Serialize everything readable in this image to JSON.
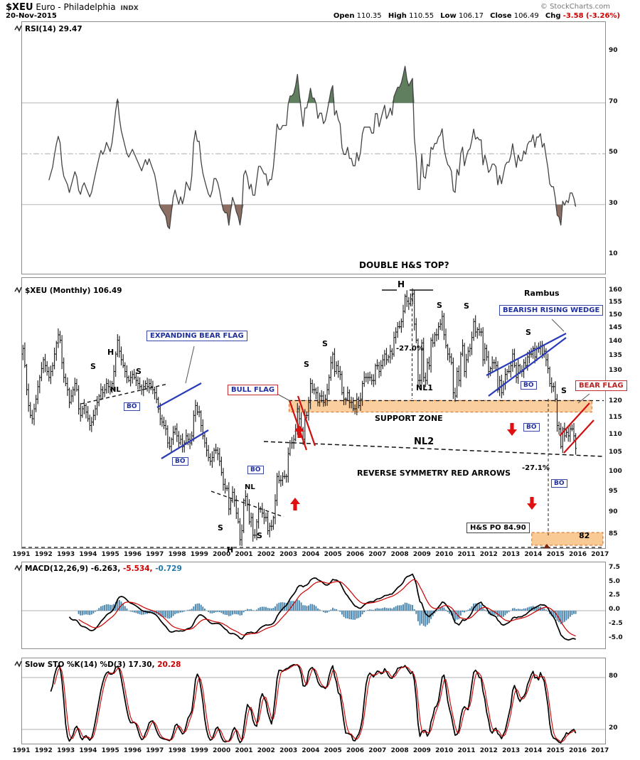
{
  "header": {
    "symbol": "$XEU",
    "name": "Euro - Philadelphia",
    "exchange": "INDX",
    "date": "20-Nov-2015",
    "copyright": "© StockCharts.com",
    "quote": {
      "open_label": "Open",
      "open": "110.35",
      "high_label": "High",
      "high": "110.55",
      "low_label": "Low",
      "low": "106.17",
      "close_label": "Close",
      "close": "106.49",
      "chg_label": "Chg",
      "chg": "-3.58 (-3.26%)"
    }
  },
  "panels": {
    "rsi": {
      "label": "RSI(14)",
      "value": "29.47"
    },
    "price": {
      "label": "$XEU (Monthly)",
      "value": "106.49"
    },
    "macd": {
      "label": "MACD(12,26,9)",
      "v1": "-6.263,",
      "v2": "-5.534,",
      "v3": "-0.729"
    },
    "sto": {
      "label": "Slow STO %K(14) %D(3)",
      "v1": "17.30,",
      "v2": "20.28"
    }
  },
  "chart_data": {
    "type": "multi-panel-financial",
    "symbol": "$XEU",
    "timeframe": "monthly",
    "x_axis": {
      "start_year": 1991,
      "year_ticks": [
        1991,
        1992,
        1993,
        1994,
        1995,
        1996,
        1997,
        1998,
        1999,
        2000,
        2001,
        2002,
        2003,
        2004,
        2005,
        2006,
        2007,
        2008,
        2009,
        2010,
        2011,
        2012,
        2013,
        2014,
        2015,
        2016,
        2017
      ]
    },
    "price_panel": {
      "kind": "ohlc-bars",
      "log_scale": true,
      "y_ticks": [
        160,
        155,
        150,
        145,
        140,
        135,
        130,
        125,
        120,
        115,
        110,
        105,
        100,
        95,
        90,
        85
      ],
      "support_zone": {
        "top": 120.6,
        "bottom": 117.0,
        "from_year": 2003.0,
        "to_year": 2016.6
      },
      "target_zone": {
        "top": 85.6,
        "bottom": 82.8,
        "from_year": 2013.9,
        "to_year": 2017.1
      },
      "hs_price_objective": 84.9,
      "monthly_close": [
        138,
        132,
        124,
        119,
        116,
        115,
        118,
        121,
        125,
        128,
        131,
        134,
        132,
        130,
        128,
        130,
        132,
        136,
        140,
        143,
        141,
        133,
        128,
        126,
        124,
        120,
        122,
        124,
        126,
        124,
        118,
        116,
        118,
        119,
        117,
        115,
        113,
        114,
        116,
        118,
        120,
        122,
        124,
        123,
        124,
        126,
        125,
        124,
        126,
        130,
        136,
        141,
        137,
        134,
        132,
        130,
        128,
        127,
        128,
        129,
        128,
        127,
        126,
        125,
        124,
        125,
        126,
        125,
        126,
        125,
        124,
        123,
        121,
        118,
        115,
        114,
        113,
        112,
        108,
        107,
        109,
        111,
        112,
        110,
        108,
        109,
        107,
        108,
        110,
        109,
        108,
        110,
        116,
        119,
        117,
        117,
        113,
        110,
        108,
        106,
        104,
        103,
        104,
        106,
        106,
        105,
        103,
        100,
        97,
        96,
        96,
        91,
        93,
        95,
        93,
        90,
        88,
        84,
        86,
        93,
        94,
        92,
        88,
        89,
        85,
        85,
        88,
        91,
        91,
        90,
        89,
        89,
        86,
        87,
        87,
        89,
        93,
        99,
        98,
        98,
        99,
        99,
        99,
        105,
        108,
        108,
        109,
        112,
        118,
        115,
        112,
        109,
        116,
        116,
        120,
        126,
        124,
        124,
        123,
        120,
        122,
        122,
        120,
        121,
        124,
        128,
        133,
        136,
        130,
        132,
        130,
        129,
        123,
        121,
        121,
        123,
        120,
        120,
        118,
        118,
        121,
        119,
        121,
        126,
        128,
        128,
        128,
        128,
        127,
        127,
        132,
        132,
        130,
        132,
        134,
        136,
        134,
        135,
        137,
        136,
        142,
        144,
        146,
        146,
        148,
        152,
        158,
        156,
        155,
        157,
        159,
        147,
        141,
        127,
        127,
        140,
        128,
        127,
        133,
        132,
        141,
        140,
        143,
        143,
        146,
        147,
        150,
        143,
        139,
        136,
        135,
        133,
        123,
        122,
        130,
        127,
        136,
        139,
        130,
        134,
        137,
        138,
        142,
        148,
        144,
        145,
        144,
        144,
        134,
        138,
        135,
        130,
        131,
        133,
        133,
        132,
        124,
        127,
        123,
        126,
        129,
        130,
        130,
        132,
        136,
        132,
        128,
        132,
        130,
        130,
        133,
        132,
        135,
        136,
        136,
        138,
        135,
        138,
        138,
        139,
        136,
        137,
        134,
        131,
        126,
        125,
        125,
        121,
        113,
        112,
        107,
        112,
        110,
        111,
        110,
        112,
        112,
        110,
        106.49
      ]
    },
    "rsi_panel": {
      "kind": "line",
      "period": 14,
      "y_ticks": [
        90,
        70,
        50,
        30,
        10
      ],
      "overbought": 70,
      "oversold": 30,
      "current": 29.47
    },
    "macd_panel": {
      "kind": "macd",
      "params": [
        12,
        26,
        9
      ],
      "y_ticks": [
        7.5,
        5.0,
        2.5,
        0.0,
        -2.5,
        -5.0
      ],
      "current": [
        -6.263,
        -5.534,
        -0.729
      ]
    },
    "sto_panel": {
      "kind": "stochastic",
      "params": "%K(14) %D(3)",
      "y_ticks": [
        80,
        20
      ],
      "current": [
        17.3,
        20.28
      ]
    },
    "colors": {
      "bar": "#1a1a1a",
      "rsi_line": "#444444",
      "rsi_fill_high": "#5f7f5f",
      "rsi_fill_low": "#8d6e63",
      "macd_line": "#000000",
      "signal_line": "#cc0000",
      "histogram": "#4a86ad",
      "sto_k": "#000000",
      "sto_d": "#cc0000",
      "zone_fill": "#f5a64d",
      "zone_border": "#d2691e",
      "annotation_blue": "#2a3bb8",
      "annotation_red": "#d01010",
      "arrow_red": "#e01010",
      "arrow_dark": "#7a2408"
    },
    "annotations": {
      "double_hs": "DOUBLE H&S TOP?",
      "rambus": "Rambus",
      "expanding_bear_flag": "EXPANDING BEAR FLAG",
      "bearish_rising_wedge": "BEARISH RISING WEDGE",
      "bull_flag": "BULL FLAG",
      "bear_flag": "BEAR FLAG",
      "support_zone": "SUPPORT ZONE",
      "reverse_symmetry": "REVERSE SYMMETRY RED ARROWS",
      "hs_po": "H&S PO 84.90",
      "po_level": "82",
      "drop1": "-27.0%",
      "drop2": "-27.1%",
      "nl": "NL",
      "nl1": "NL1",
      "nl2": "NL2",
      "s": "S",
      "h": "H",
      "bo": "BO"
    }
  }
}
